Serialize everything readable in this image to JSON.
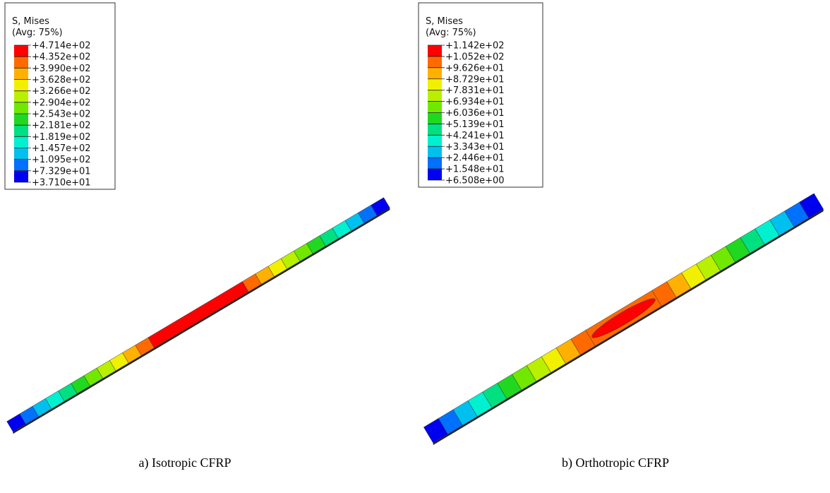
{
  "panels": [
    {
      "legend": {
        "title": "S, Mises",
        "subtitle": "(Avg: 75%)",
        "labels": [
          "+4.714e+02",
          "+4.352e+02",
          "+3.990e+02",
          "+3.628e+02",
          "+3.266e+02",
          "+2.904e+02",
          "+2.543e+02",
          "+2.181e+02",
          "+1.819e+02",
          "+1.457e+02",
          "+1.095e+02",
          "+7.329e+01",
          "+3.710e+01"
        ]
      },
      "caption": "a) Isotropic CFRP"
    },
    {
      "legend": {
        "title": "S, Mises",
        "subtitle": "(Avg: 75%)",
        "labels": [
          "+1.142e+02",
          "+1.052e+02",
          "+9.626e+01",
          "+8.729e+01",
          "+7.831e+01",
          "+6.934e+01",
          "+6.036e+01",
          "+5.139e+01",
          "+4.241e+01",
          "+3.343e+01",
          "+2.446e+01",
          "+1.548e+01",
          "+6.508e+00"
        ]
      },
      "caption": "b) Orthotropic CFRP"
    }
  ]
}
